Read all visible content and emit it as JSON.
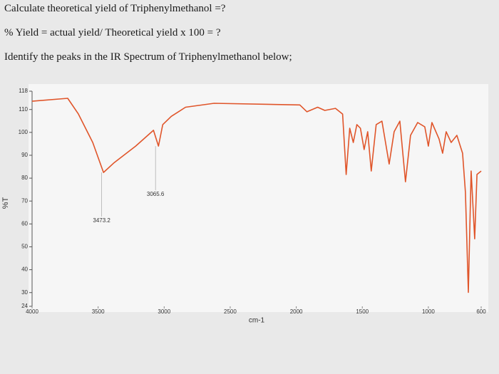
{
  "questions": [
    "Calculate theoretical yield of Triphenylmethanol =?",
    "% Yield = actual yield/ Theoretical yield x 100 = ?",
    "Identify the peaks in the IR Spectrum of Triphenylmethanol below;"
  ],
  "chart_data": {
    "type": "line",
    "xlabel": "cm-1",
    "ylabel": "%T",
    "color": "#e0552a",
    "xlim": [
      4000,
      600
    ],
    "ylim": [
      24,
      118
    ],
    "xticks": [
      4000,
      3500,
      3000,
      2500,
      2000,
      1500,
      1000,
      600
    ],
    "yticks": [
      24,
      30,
      40,
      50,
      60,
      70,
      80,
      90,
      100,
      110,
      118
    ],
    "x": [
      4000,
      3730,
      3649,
      3541,
      3459,
      3378,
      3216,
      3081,
      3043,
      3011,
      2946,
      2838,
      2622,
      1973,
      1919,
      1838,
      1784,
      1703,
      1649,
      1622,
      1595,
      1568,
      1541,
      1514,
      1486,
      1459,
      1432,
      1395,
      1351,
      1297,
      1259,
      1216,
      1173,
      1135,
      1081,
      1027,
      1000,
      973,
      919,
      892,
      865,
      827,
      784,
      741,
      719,
      697,
      676,
      649,
      632,
      600
    ],
    "values": [
      113.6,
      114.9,
      108,
      95.6,
      82.5,
      86.8,
      94,
      100.9,
      94,
      103.4,
      107,
      111,
      112.7,
      112,
      109,
      111,
      109.6,
      110.5,
      108,
      81.6,
      101.8,
      95.6,
      103.4,
      101.8,
      92.5,
      100.3,
      83.1,
      103.4,
      104.9,
      86.2,
      100.3,
      104.9,
      78.4,
      98.7,
      104.3,
      102.4,
      94,
      104.3,
      97.1,
      90.9,
      100.3,
      95.6,
      98.7,
      90.9,
      73.8,
      30.1,
      83.1,
      53.5,
      81.6,
      83.1
    ],
    "annotations": [
      {
        "label": "3473.2",
        "x": 3473.2,
        "y": 82.5
      },
      {
        "label": "3065.6",
        "x": 3065.6,
        "y": 94
      }
    ]
  }
}
